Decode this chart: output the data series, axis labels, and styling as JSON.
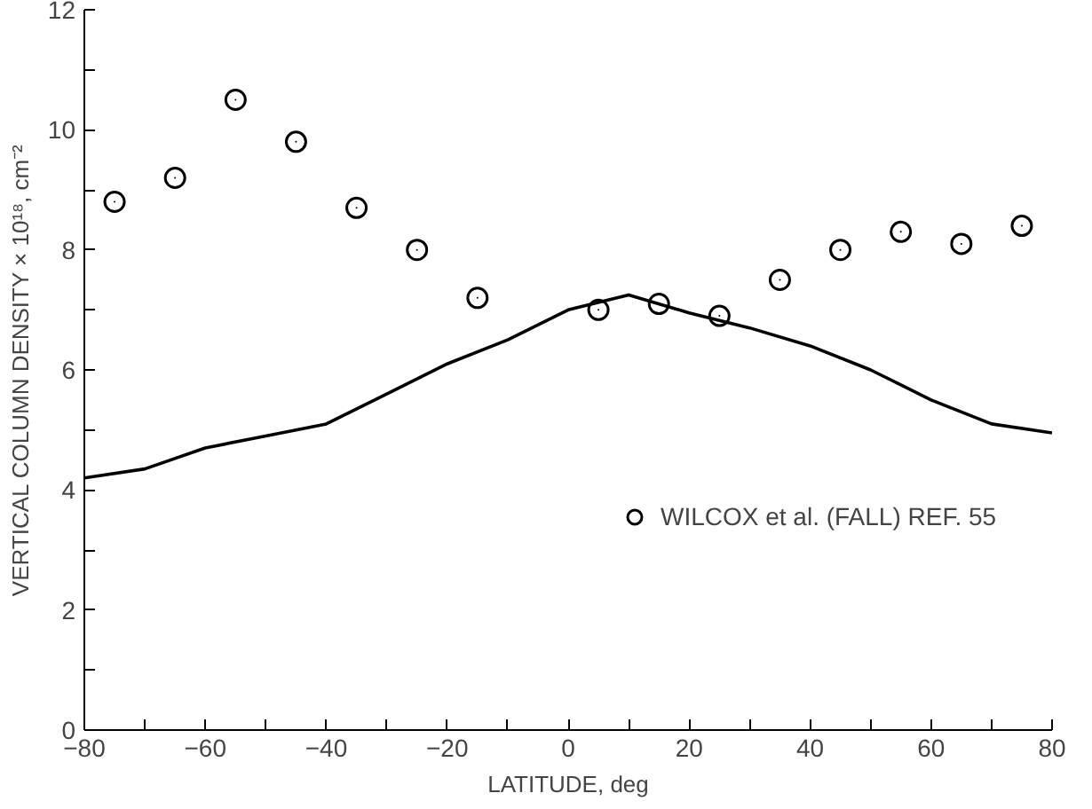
{
  "chart_data": {
    "type": "scatter",
    "xlabel": "LATITUDE, deg",
    "ylabel": "VERTICAL COLUMN DENSITY × 10¹⁸, cm⁻²",
    "xlim": [
      -80,
      80
    ],
    "ylim": [
      0,
      12
    ],
    "xticks": [
      -80,
      {
        "value": -70,
        "label": null
      },
      -60,
      {
        "value": -50,
        "label": null
      },
      -40,
      {
        "value": -30,
        "label": null
      },
      -20,
      {
        "value": -10,
        "label": null
      },
      0,
      {
        "value": 10,
        "label": null
      },
      20,
      {
        "value": 30,
        "label": null
      },
      40,
      {
        "value": 50,
        "label": null
      },
      60,
      {
        "value": 70,
        "label": null
      },
      80
    ],
    "yticks": [
      0,
      {
        "value": 1,
        "label": null
      },
      2,
      {
        "value": 3,
        "label": null
      },
      4,
      {
        "value": 5,
        "label": null
      },
      6,
      {
        "value": 7,
        "label": null
      },
      8,
      {
        "value": 9,
        "label": null
      },
      10,
      {
        "value": 11,
        "label": null
      },
      12
    ],
    "grid": false,
    "legend": "right",
    "series": [
      {
        "name": "WILCOX et al. (FALL) REF. 55",
        "marker": "circle",
        "color": "#000000",
        "x": [
          -75,
          -65,
          -55,
          -45,
          -35,
          -25,
          -15,
          5,
          15,
          25,
          35,
          45,
          55,
          65,
          75
        ],
        "values": [
          8.8,
          9.2,
          10.5,
          9.8,
          8.7,
          8.0,
          7.2,
          7.0,
          7.1,
          6.9,
          7.5,
          8.0,
          8.3,
          8.1,
          8.4
        ]
      },
      {
        "type": "line",
        "line_style": "solid",
        "color": "#000000",
        "x": [
          -80,
          -70,
          -60,
          -50,
          -40,
          -30,
          -20,
          -10,
          0,
          10,
          20,
          30,
          40,
          50,
          60,
          70,
          80
        ],
        "values": [
          4.2,
          4.35,
          4.7,
          4.9,
          5.1,
          5.6,
          6.1,
          6.5,
          7.0,
          7.25,
          6.95,
          6.7,
          6.4,
          6.0,
          5.5,
          5.1,
          4.95
        ]
      }
    ]
  }
}
